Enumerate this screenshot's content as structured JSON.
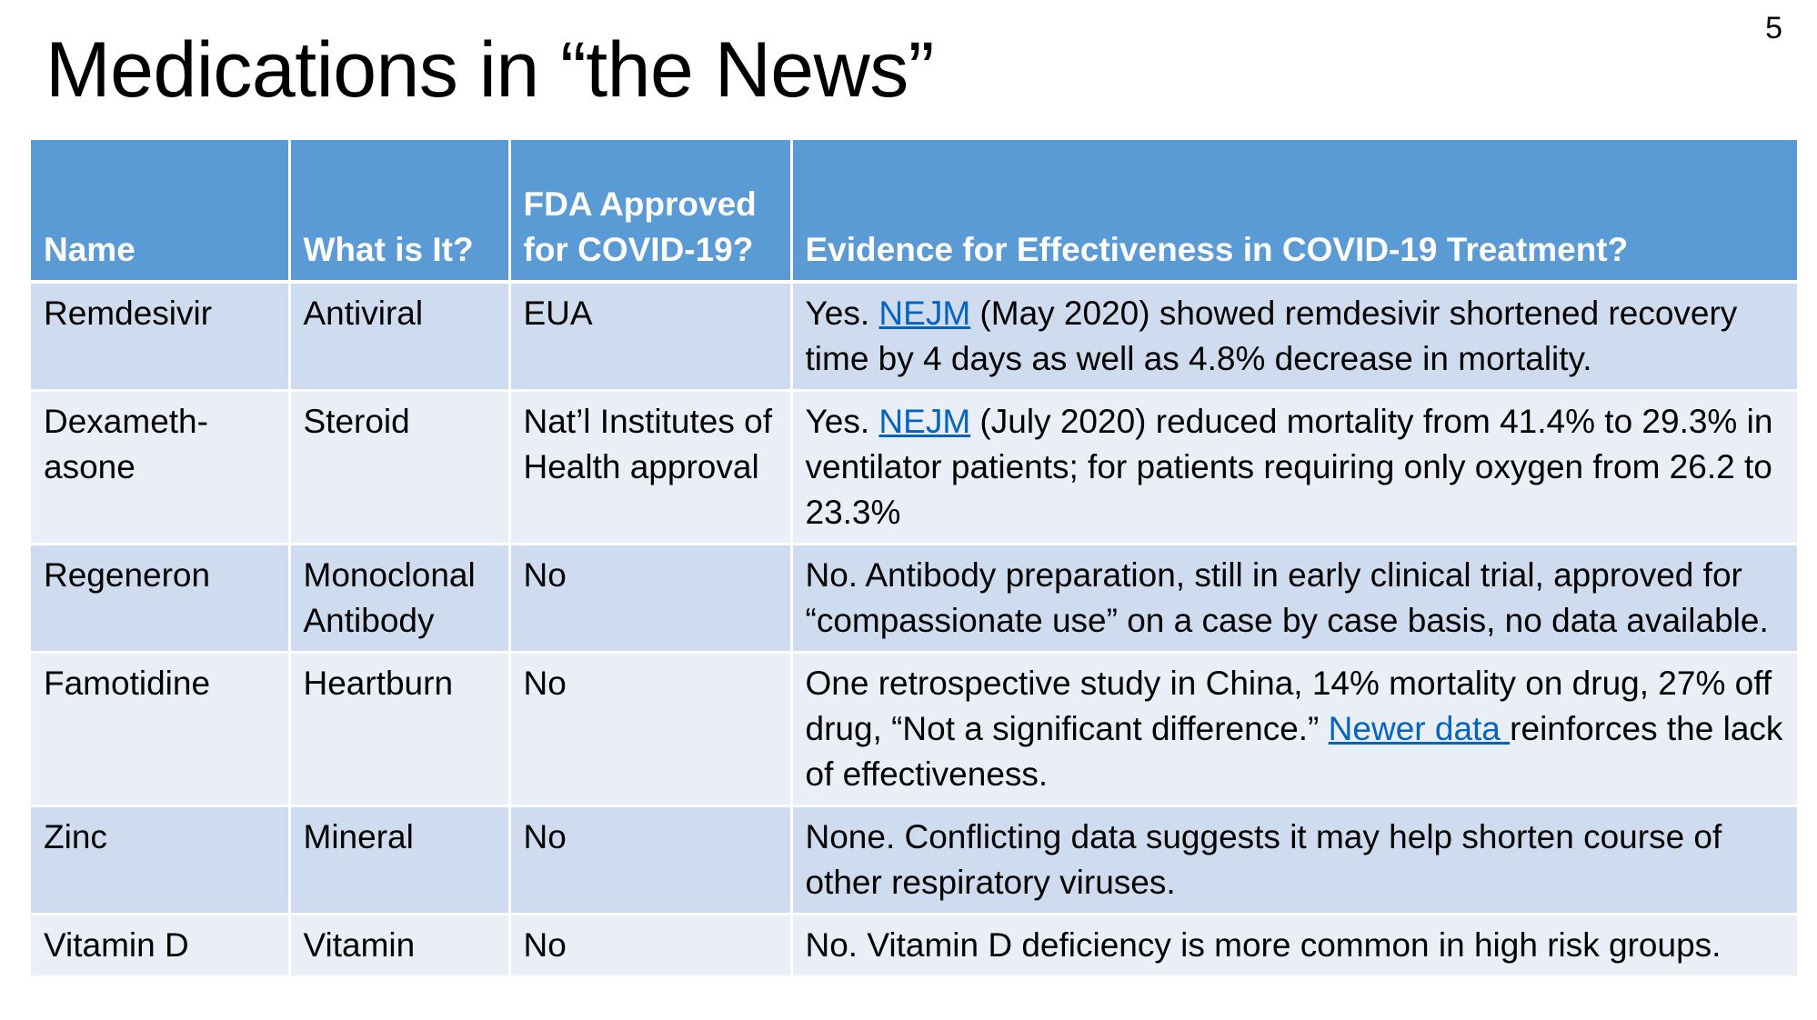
{
  "slide": {
    "number": "5",
    "title": "Medications in “the News”"
  },
  "table": {
    "headers": {
      "name": "Name",
      "what": "What is It?",
      "fda": "FDA Approved for COVID-19?",
      "evidence": "Evidence for Effectiveness in COVID-19 Treatment?"
    },
    "rows": [
      {
        "name": "Remdesivir",
        "what": "Antiviral",
        "fda": "EUA",
        "evidence_pre": "Yes. ",
        "evidence_link": "NEJM",
        "evidence_post": " (May 2020) showed remdesivir shortened recovery time by 4 days as well as 4.8% decrease in mortality."
      },
      {
        "name": "Dexameth-asone",
        "what": "Steroid",
        "fda": "Nat’l Institutes of Health approval",
        "evidence_pre": "Yes. ",
        "evidence_link": "NEJM",
        "evidence_post": " (July 2020) reduced mortality from 41.4% to 29.3% in ventilator patients; for patients requiring only oxygen from 26.2 to 23.3%"
      },
      {
        "name": "Regeneron",
        "what": "Monoclonal Antibody",
        "fda": "No",
        "evidence": "No. Antibody preparation, still in early clinical trial, approved for “compassionate use” on a case by case basis, no data available."
      },
      {
        "name": "Famotidine",
        "what": "Heartburn",
        "fda": "No",
        "evidence_pre": "One retrospective study in China, 14% mortality on drug, 27% off drug, “Not a significant difference.” ",
        "evidence_link": "Newer data ",
        "evidence_post": "reinforces the lack of effectiveness."
      },
      {
        "name": "Zinc",
        "what": "Mineral",
        "fda": "No",
        "evidence": "None. Conflicting data suggests it may help shorten course of other respiratory viruses."
      },
      {
        "name": "Vitamin D",
        "what": "Vitamin",
        "fda": "No",
        "evidence": "No. Vitamin D deficiency is more common in high risk groups."
      }
    ]
  },
  "colors": {
    "header_bg": "#5b9bd5",
    "row_odd_bg": "#cfdbee",
    "row_even_bg": "#e9eef7",
    "link": "#0563c1"
  }
}
